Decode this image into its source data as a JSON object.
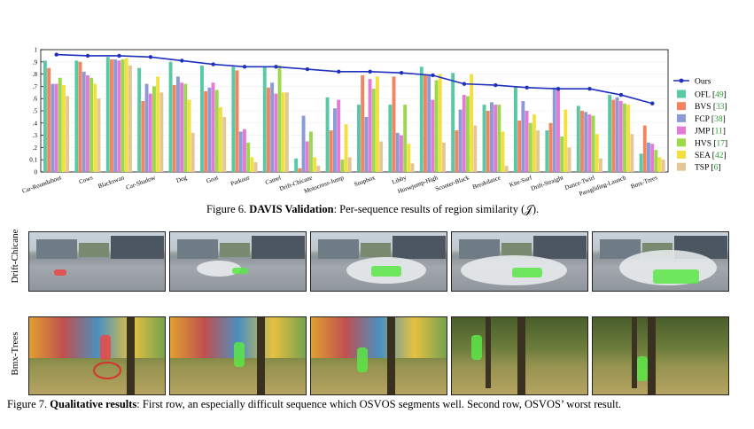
{
  "chart_data": {
    "type": "bar",
    "categories": [
      "Car-Roundabout",
      "Cows",
      "Blackswan",
      "Car-Shadow",
      "Dog",
      "Goat",
      "Parkour",
      "Camel",
      "Drift-Chicane",
      "Motocross-Jump",
      "Soapbox",
      "Libby",
      "Horsejump-High",
      "Scooter-Black",
      "Breakdance",
      "Kite-Surf",
      "Drift-Straight",
      "Dance-Twirl",
      "Paragliding-Launch",
      "Bmx-Trees"
    ],
    "ylim": [
      0,
      1
    ],
    "yticks": [
      "0",
      "0.1",
      ".2",
      ".3",
      ".4",
      ".5",
      ".6",
      ".7",
      ".8",
      ".9",
      "1"
    ],
    "ytick_values": [
      0,
      0.1,
      0.2,
      0.3,
      0.4,
      0.5,
      0.6,
      0.7,
      0.8,
      0.9,
      1
    ],
    "line_series": {
      "name": "Ours",
      "color": "#1f2fbf",
      "values": [
        0.96,
        0.95,
        0.95,
        0.94,
        0.91,
        0.88,
        0.86,
        0.86,
        0.84,
        0.82,
        0.82,
        0.81,
        0.79,
        0.72,
        0.71,
        0.69,
        0.68,
        0.68,
        0.63,
        0.56
      ]
    },
    "series": [
      {
        "name": "OFL",
        "ref": "49",
        "color": "#59c9a5",
        "values": [
          0.91,
          0.91,
          0.94,
          0.85,
          0.9,
          0.87,
          0.86,
          0.86,
          0.11,
          0.61,
          0.55,
          0.55,
          0.86,
          0.81,
          0.55,
          0.7,
          0.34,
          0.54,
          0.63,
          0.15
        ]
      },
      {
        "name": "BVS",
        "ref": "33",
        "color": "#f4845f",
        "values": [
          0.85,
          0.9,
          0.92,
          0.58,
          0.71,
          0.66,
          0.83,
          0.69,
          0.03,
          0.34,
          0.79,
          0.78,
          0.8,
          0.34,
          0.5,
          0.42,
          0.4,
          0.5,
          0.59,
          0.38
        ]
      },
      {
        "name": "FCP",
        "ref": "38",
        "color": "#8c9bd6",
        "values": [
          0.72,
          0.82,
          0.92,
          0.72,
          0.78,
          0.69,
          0.33,
          0.73,
          0.46,
          0.52,
          0.45,
          0.32,
          0.79,
          0.51,
          0.57,
          0.58,
          0.69,
          0.49,
          0.61,
          0.24
        ]
      },
      {
        "name": "JMP",
        "ref": "11",
        "color": "#e37bd6",
        "values": [
          0.72,
          0.79,
          0.91,
          0.64,
          0.73,
          0.73,
          0.35,
          0.64,
          0.25,
          0.59,
          0.76,
          0.3,
          0.59,
          0.63,
          0.55,
          0.5,
          0.68,
          0.47,
          0.58,
          0.23
        ]
      },
      {
        "name": "HVS",
        "ref": "17",
        "color": "#9bd84a",
        "values": [
          0.77,
          0.77,
          0.92,
          0.7,
          0.72,
          0.67,
          0.24,
          0.87,
          0.33,
          0.1,
          0.68,
          0.55,
          0.75,
          0.62,
          0.55,
          0.4,
          0.29,
          0.46,
          0.56,
          0.18
        ]
      },
      {
        "name": "SEA",
        "ref": "42",
        "color": "#f2e040",
        "values": [
          0.71,
          0.72,
          0.93,
          0.78,
          0.59,
          0.53,
          0.12,
          0.65,
          0.12,
          0.39,
          0.78,
          0.23,
          0.8,
          0.8,
          0.33,
          0.47,
          0.51,
          0.31,
          0.55,
          0.12
        ]
      },
      {
        "name": "TSP",
        "ref": "6",
        "color": "#e3c79a",
        "values": [
          0.62,
          0.6,
          0.87,
          0.65,
          0.32,
          0.45,
          0.08,
          0.65,
          0.05,
          0.12,
          0.25,
          0.07,
          0.24,
          0.38,
          0.05,
          0.34,
          0.2,
          0.11,
          0.31,
          0.1
        ]
      }
    ]
  },
  "figure6_caption": {
    "prefix": "Figure 6. ",
    "bold": "DAVIS Validation",
    "rest": ": Per-sequence results of region similarity (𝒥)."
  },
  "figure7": {
    "row_labels": [
      "Drift-Chicane",
      "Bmx-Trees"
    ],
    "caption_prefix": "Figure 7. ",
    "caption_bold": "Qualitative results",
    "caption_rest": ": First row, an especially difficult sequence which OSVOS segments well. Second row, OSVOS’ worst result."
  }
}
